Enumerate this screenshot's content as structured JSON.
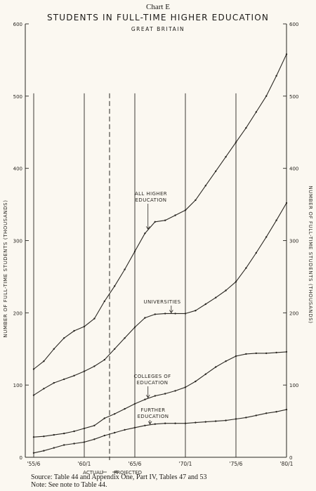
{
  "chart_label": "Chart E",
  "title": "STUDENTS IN FULL-TIME HIGHER EDUCATION",
  "subtitle": "GREAT BRITAIN",
  "source": "Source: Table 44 and Appendix One, Part IV, Tables 47 and 53",
  "note": "Note:  See note to Table 44.",
  "chart_data": {
    "type": "line",
    "ylabel_left": "NUMBER OF FULL-TIME STUDENTS (THOUSANDS)",
    "ylabel_right": "NUMBER OF FULL-TIME STUDENTS (THOUSANDS)",
    "ylim": [
      0,
      600
    ],
    "yticks": [
      0,
      100,
      200,
      300,
      400,
      500,
      600
    ],
    "ytick_labels": [
      "0",
      "100",
      "200",
      "300",
      "400",
      "500",
      "600"
    ],
    "xlim": [
      1955,
      1980
    ],
    "xticks": [
      1955,
      1960,
      1965,
      1970,
      1975,
      1980
    ],
    "xtick_labels": [
      "'55/6",
      "'60/1",
      "'65/6",
      "'70/1",
      "'75/6",
      "'80/1"
    ],
    "actual_projected_divider": 1962.5,
    "actual_label": "ACTUAL",
    "projected_label": "PROJECTED",
    "grid": "vertical lines at each five-year mark",
    "x": [
      1955,
      1956,
      1957,
      1958,
      1959,
      1960,
      1961,
      1962,
      1963,
      1964,
      1965,
      1966,
      1967,
      1968,
      1969,
      1970,
      1971,
      1972,
      1973,
      1974,
      1975,
      1976,
      1977,
      1978,
      1979,
      1980
    ],
    "series": [
      {
        "name": "ALL HIGHER EDUCATION",
        "annotation_lines": [
          "ALL HIGHER",
          "EDUCATION"
        ],
        "values": [
          122,
          133,
          150,
          165,
          175,
          181,
          192,
          216,
          237,
          260,
          285,
          310,
          326,
          328,
          335,
          342,
          356,
          376,
          396,
          416,
          436,
          456,
          478,
          500,
          528,
          558
        ]
      },
      {
        "name": "UNIVERSITIES",
        "annotation_lines": [
          "UNIVERSITIES"
        ],
        "values": [
          86,
          95,
          103,
          108,
          113,
          119,
          126,
          135,
          150,
          165,
          180,
          193,
          198,
          199,
          199,
          199,
          203,
          212,
          221,
          231,
          243,
          262,
          283,
          305,
          328,
          352
        ]
      },
      {
        "name": "COLLEGES OF EDUCATION",
        "annotation_lines": [
          "COLLEGES OF",
          "EDUCATION"
        ],
        "values": [
          28,
          29,
          31,
          33,
          36,
          40,
          44,
          54,
          60,
          67,
          74,
          80,
          85,
          88,
          92,
          97,
          105,
          115,
          125,
          133,
          140,
          143,
          144,
          144,
          145,
          146
        ]
      },
      {
        "name": "FURTHER EDUCATION",
        "annotation_lines": [
          "FURTHER",
          "EDUCATION"
        ],
        "values": [
          6,
          9,
          13,
          17,
          19,
          21,
          25,
          30,
          34,
          38,
          41,
          44,
          46,
          47,
          47,
          47,
          48,
          49,
          50,
          51,
          53,
          55,
          58,
          61,
          63,
          66
        ]
      }
    ]
  }
}
